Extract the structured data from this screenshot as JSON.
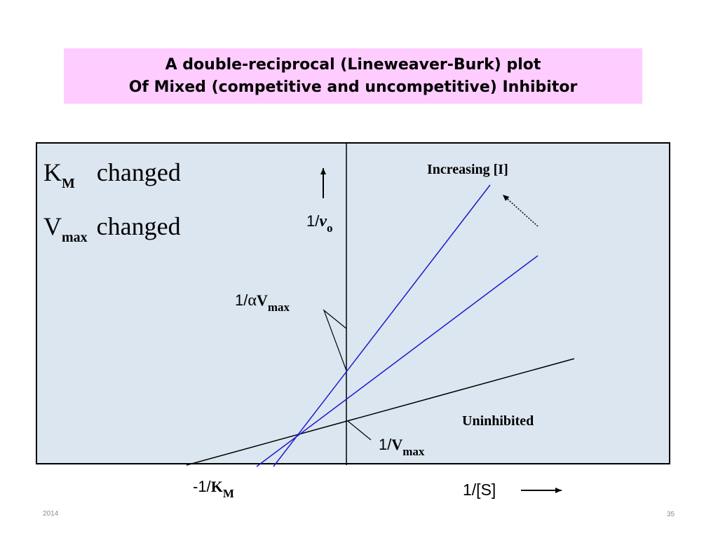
{
  "title": {
    "line1": "A double-reciprocal (Lineweaver-Burk) plot",
    "line2": "Of Mixed (competitive and uncompetitive) Inhibitor"
  },
  "legend": {
    "km_main": "K",
    "km_sub": "M",
    "km_text": "changed",
    "vmax_main": "V",
    "vmax_sub": "max",
    "vmax_text": "changed"
  },
  "labels": {
    "increasing": "Increasing [I]",
    "uninhibited": "Uninhibited",
    "yaxis_pre": "1/",
    "yaxis_v": "v",
    "yaxis_sub": "o",
    "alpha_pre": "1/",
    "alpha_symbol": "α",
    "alpha_v": "V",
    "alpha_sub": "max",
    "vmax_pre": "1/",
    "vmax_v": "V",
    "vmax_sub": "max",
    "km_pre": "-1/",
    "km_k": "K",
    "km_sub": "M",
    "xaxis": "1/[S]"
  },
  "footer": {
    "year": "2014",
    "page": "35"
  },
  "colors": {
    "uninhibited_line": "#000000",
    "inhibited_lines": "#1a1acc",
    "title_bg": "#ffccff",
    "plot_bg": "#dce6f0"
  }
}
